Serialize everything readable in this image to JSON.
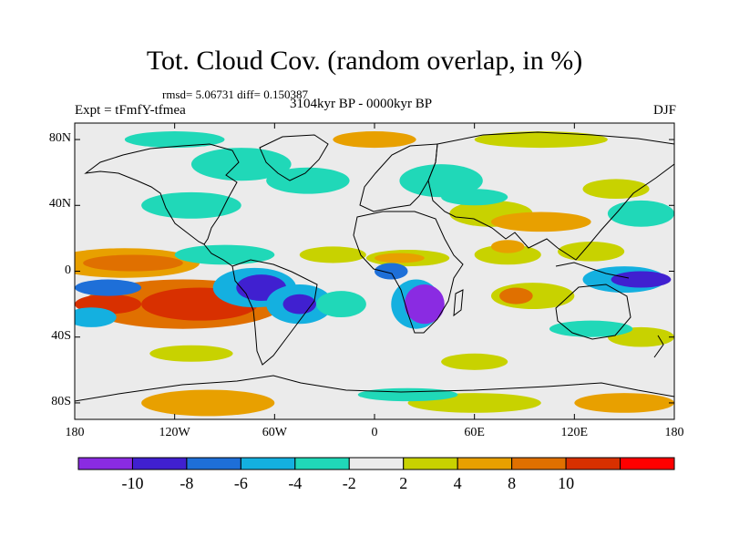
{
  "title": "Tot. Cloud Cov. (random overlap, in %)",
  "stats": "rmsd= 5.06731 diff= 0.150387",
  "experiment": "Expt = tFmfY-tfmea",
  "period": "3104kyr BP - 0000kyr BP",
  "season": "DJF",
  "lat_ticks": [
    {
      "label": "80N",
      "lat": 80
    },
    {
      "label": "40N",
      "lat": 40
    },
    {
      "label": "0",
      "lat": 0
    },
    {
      "label": "40S",
      "lat": -40
    },
    {
      "label": "80S",
      "lat": -80
    }
  ],
  "lon_ticks": [
    {
      "label": "180",
      "lon": -180
    },
    {
      "label": "120W",
      "lon": -120
    },
    {
      "label": "60W",
      "lon": -60
    },
    {
      "label": "0",
      "lon": 0
    },
    {
      "label": "60E",
      "lon": 60
    },
    {
      "label": "120E",
      "lon": 120
    },
    {
      "label": "180",
      "lon": 180
    }
  ],
  "colorbar": {
    "colors": [
      "#8a2be2",
      "#4020d0",
      "#1e6fd8",
      "#14b0e0",
      "#20d8b8",
      "#ebebeb",
      "#c8d200",
      "#e8a000",
      "#e07000",
      "#d83000",
      "#ff0000"
    ],
    "labels": [
      "-10",
      "-8",
      "-6",
      "-4",
      "-2",
      "2",
      "4",
      "8",
      "10"
    ]
  },
  "regions": [
    {
      "level": 2,
      "cx": -150,
      "cy": 5,
      "rx": 45,
      "ry": 9
    },
    {
      "level": 3,
      "cx": -145,
      "cy": 5,
      "rx": 30,
      "ry": 5
    },
    {
      "level": 3,
      "cx": -115,
      "cy": -20,
      "rx": 60,
      "ry": 15
    },
    {
      "level": 4,
      "cx": -105,
      "cy": -20,
      "rx": 35,
      "ry": 10
    },
    {
      "level": 4,
      "cx": -160,
      "cy": -20,
      "rx": 20,
      "ry": 6
    },
    {
      "level": -3,
      "cx": -160,
      "cy": -10,
      "rx": 20,
      "ry": 5
    },
    {
      "level": -2,
      "cx": -170,
      "cy": -28,
      "rx": 15,
      "ry": 6
    },
    {
      "level": -2,
      "cx": -72,
      "cy": -10,
      "rx": 25,
      "ry": 12
    },
    {
      "level": -4,
      "cx": -68,
      "cy": -10,
      "rx": 15,
      "ry": 8
    },
    {
      "level": -2,
      "cx": -45,
      "cy": -20,
      "rx": 20,
      "ry": 12
    },
    {
      "level": -4,
      "cx": -45,
      "cy": -20,
      "rx": 10,
      "ry": 6
    },
    {
      "level": -1,
      "cx": -90,
      "cy": 10,
      "rx": 30,
      "ry": 6
    },
    {
      "level": -1,
      "cx": -20,
      "cy": -20,
      "rx": 15,
      "ry": 8
    },
    {
      "level": -1,
      "cx": -110,
      "cy": 40,
      "rx": 30,
      "ry": 8
    },
    {
      "level": -1,
      "cx": -80,
      "cy": 65,
      "rx": 30,
      "ry": 10
    },
    {
      "level": -1,
      "cx": -40,
      "cy": 55,
      "rx": 25,
      "ry": 8
    },
    {
      "level": 1,
      "cx": 20,
      "cy": 8,
      "rx": 25,
      "ry": 5
    },
    {
      "level": 2,
      "cx": 15,
      "cy": 8,
      "rx": 15,
      "ry": 3
    },
    {
      "level": -3,
      "cx": 10,
      "cy": 0,
      "rx": 10,
      "ry": 5
    },
    {
      "level": -2,
      "cx": 25,
      "cy": -20,
      "rx": 15,
      "ry": 15
    },
    {
      "level": -5,
      "cx": 30,
      "cy": -20,
      "rx": 12,
      "ry": 12
    },
    {
      "level": -1,
      "cx": 40,
      "cy": 55,
      "rx": 25,
      "ry": 10
    },
    {
      "level": 1,
      "cx": 70,
      "cy": 35,
      "rx": 25,
      "ry": 8
    },
    {
      "level": 2,
      "cx": 100,
      "cy": 30,
      "rx": 30,
      "ry": 6
    },
    {
      "level": -1,
      "cx": 60,
      "cy": 45,
      "rx": 20,
      "ry": 5
    },
    {
      "level": 1,
      "cx": 80,
      "cy": 10,
      "rx": 20,
      "ry": 6
    },
    {
      "level": 2,
      "cx": 80,
      "cy": 15,
      "rx": 10,
      "ry": 4
    },
    {
      "level": 1,
      "cx": 95,
      "cy": -15,
      "rx": 25,
      "ry": 8
    },
    {
      "level": 3,
      "cx": 85,
      "cy": -15,
      "rx": 10,
      "ry": 5
    },
    {
      "level": -2,
      "cx": 150,
      "cy": -5,
      "rx": 25,
      "ry": 8
    },
    {
      "level": -4,
      "cx": 160,
      "cy": -5,
      "rx": 18,
      "ry": 5
    },
    {
      "level": -1,
      "cx": 160,
      "cy": 35,
      "rx": 20,
      "ry": 8
    },
    {
      "level": 1,
      "cx": 145,
      "cy": 50,
      "rx": 20,
      "ry": 6
    },
    {
      "level": 1,
      "cx": 130,
      "cy": 12,
      "rx": 20,
      "ry": 6
    },
    {
      "level": 1,
      "cx": -25,
      "cy": 10,
      "rx": 20,
      "ry": 5
    },
    {
      "level": 2,
      "cx": 0,
      "cy": 80,
      "rx": 25,
      "ry": 5
    },
    {
      "level": 1,
      "cx": 100,
      "cy": 80,
      "rx": 40,
      "ry": 5
    },
    {
      "level": -1,
      "cx": -120,
      "cy": 80,
      "rx": 30,
      "ry": 5
    },
    {
      "level": 1,
      "cx": -110,
      "cy": -50,
      "rx": 25,
      "ry": 5
    },
    {
      "level": 1,
      "cx": 60,
      "cy": -55,
      "rx": 20,
      "ry": 5
    },
    {
      "level": 1,
      "cx": 160,
      "cy": -40,
      "rx": 20,
      "ry": 6
    },
    {
      "level": -1,
      "cx": 130,
      "cy": -35,
      "rx": 25,
      "ry": 5
    },
    {
      "level": 2,
      "cx": -100,
      "cy": -80,
      "rx": 40,
      "ry": 8
    },
    {
      "level": 1,
      "cx": 60,
      "cy": -80,
      "rx": 40,
      "ry": 6
    },
    {
      "level": 2,
      "cx": 150,
      "cy": -80,
      "rx": 30,
      "ry": 6
    },
    {
      "level": -1,
      "cx": 20,
      "cy": -75,
      "rx": 30,
      "ry": 4
    }
  ]
}
